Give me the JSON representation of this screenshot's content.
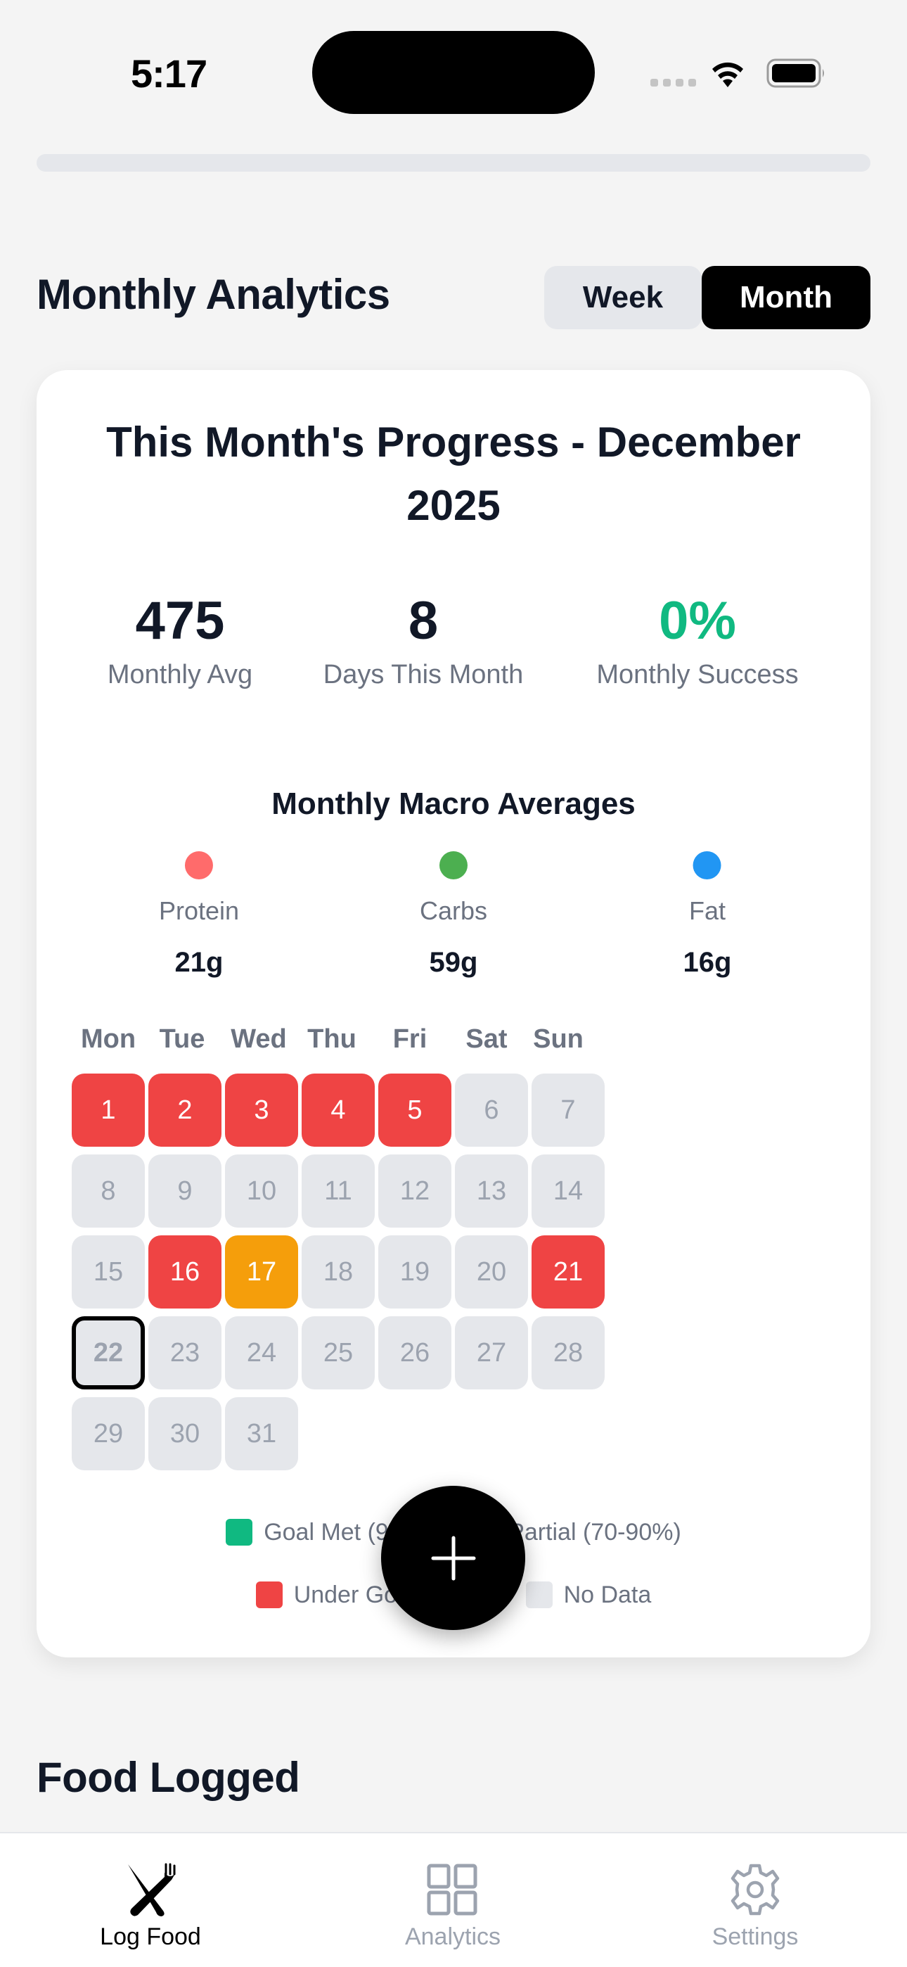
{
  "status_bar": {
    "time": "5:17",
    "icons": [
      "signal-icon",
      "wifi-icon",
      "battery-icon"
    ]
  },
  "header": {
    "title": "Monthly Analytics",
    "segments": [
      {
        "label": "Week",
        "active": false
      },
      {
        "label": "Month",
        "active": true
      }
    ]
  },
  "card": {
    "title": "This Month's Progress - December 2025",
    "stats": [
      {
        "value": "475",
        "label": "Monthly Avg"
      },
      {
        "value": "8",
        "label": "Days This Month"
      },
      {
        "value": "0%",
        "label": "Monthly Success",
        "color": "#10b981"
      }
    ],
    "macros": {
      "title": "Monthly Macro Averages",
      "items": [
        {
          "label": "Protein",
          "value": "21g",
          "color": "#ff6b6b"
        },
        {
          "label": "Carbs",
          "value": "59g",
          "color": "#4caf50"
        },
        {
          "label": "Fat",
          "value": "16g",
          "color": "#2196f3"
        }
      ]
    },
    "calendar": {
      "weekdays": [
        "Mon",
        "Tue",
        "Wed",
        "Thu",
        "Fri",
        "Sat",
        "Sun"
      ],
      "days": [
        {
          "day": "1",
          "status": "under"
        },
        {
          "day": "2",
          "status": "under"
        },
        {
          "day": "3",
          "status": "under"
        },
        {
          "day": "4",
          "status": "under"
        },
        {
          "day": "5",
          "status": "under"
        },
        {
          "day": "6",
          "status": "none"
        },
        {
          "day": "7",
          "status": "none"
        },
        {
          "day": "8",
          "status": "none"
        },
        {
          "day": "9",
          "status": "none"
        },
        {
          "day": "10",
          "status": "none"
        },
        {
          "day": "11",
          "status": "none"
        },
        {
          "day": "12",
          "status": "none"
        },
        {
          "day": "13",
          "status": "none"
        },
        {
          "day": "14",
          "status": "none"
        },
        {
          "day": "15",
          "status": "none"
        },
        {
          "day": "16",
          "status": "under"
        },
        {
          "day": "17",
          "status": "partial"
        },
        {
          "day": "18",
          "status": "none"
        },
        {
          "day": "19",
          "status": "none"
        },
        {
          "day": "20",
          "status": "none"
        },
        {
          "day": "21",
          "status": "under"
        },
        {
          "day": "22",
          "status": "today"
        },
        {
          "day": "23",
          "status": "none"
        },
        {
          "day": "24",
          "status": "none"
        },
        {
          "day": "25",
          "status": "none"
        },
        {
          "day": "26",
          "status": "none"
        },
        {
          "day": "27",
          "status": "none"
        },
        {
          "day": "28",
          "status": "none"
        },
        {
          "day": "29",
          "status": "none"
        },
        {
          "day": "30",
          "status": "none"
        },
        {
          "day": "31",
          "status": "none"
        }
      ]
    },
    "legend": [
      {
        "label": "Goal Met (90%+)",
        "color": "#10b981"
      },
      {
        "label": "Partial (70-90%)",
        "color": "#f59e0b"
      },
      {
        "label": "Under Goal (<70%)",
        "color": "#ef4444"
      },
      {
        "label": "No Data",
        "color": "#e5e7eb"
      }
    ]
  },
  "food_section": {
    "title": "Food Logged"
  },
  "fab": {
    "icon": "plus-icon"
  },
  "tab_bar": {
    "tabs": [
      {
        "label": "Log Food",
        "icon": "fork-knife-icon",
        "active": true
      },
      {
        "label": "Analytics",
        "icon": "grid-icon",
        "active": false
      },
      {
        "label": "Settings",
        "icon": "gear-icon",
        "active": false
      }
    ]
  },
  "colors": {
    "background": "#f4f4f4",
    "under_goal": "#ef4444",
    "partial": "#f59e0b",
    "goal_met": "#10b981",
    "no_data": "#e5e7eb",
    "text_primary": "#111827",
    "text_secondary": "#6b7280"
  }
}
